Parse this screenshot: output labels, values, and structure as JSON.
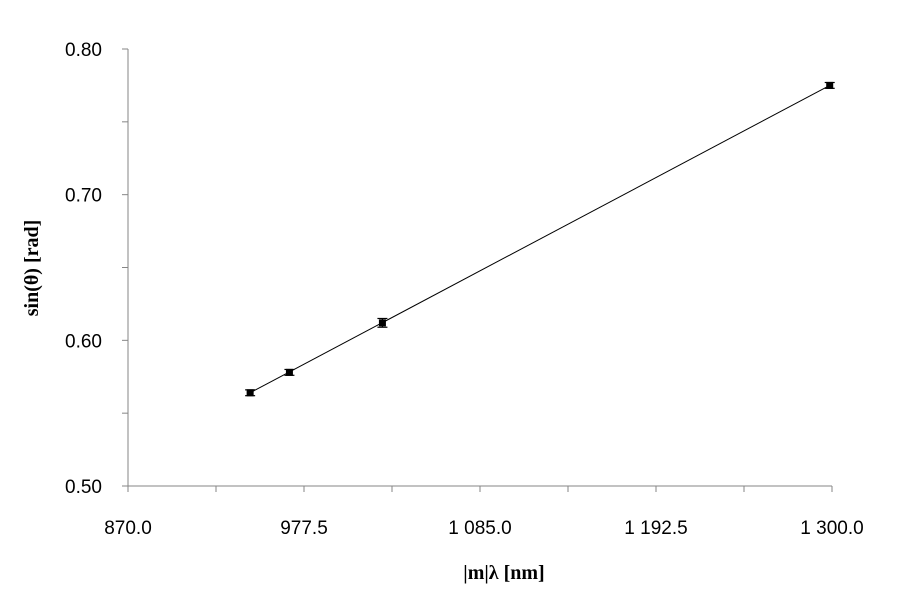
{
  "chart_data": {
    "type": "scatter",
    "title": "",
    "xlabel": "|m|λ [nm]",
    "ylabel": "sin(θ) [rad]",
    "xlim": [
      870.0,
      1300.0
    ],
    "ylim": [
      0.5,
      0.8
    ],
    "x_ticks": [
      870.0,
      977.5,
      1085.0,
      1192.5,
      1300.0
    ],
    "x_tick_labels": [
      "870.0",
      "977.5",
      "1 085.0",
      "1 192.5",
      "1 300.0"
    ],
    "x_minor_step": 53.75,
    "y_ticks": [
      0.5,
      0.6,
      0.7,
      0.8
    ],
    "y_tick_labels": [
      "0.50",
      "0.60",
      "0.70",
      "0.80"
    ],
    "y_minor_step": 0.05,
    "grid": false,
    "legend": "none",
    "series": [
      {
        "x": [
          944.6,
          968.6,
          1025.4,
          1298.6
        ],
        "y": [
          0.564,
          0.578,
          0.612,
          0.775
        ],
        "y_error": [
          0.002,
          0.002,
          0.003,
          0.002
        ],
        "marker": "square",
        "color": "#000000"
      }
    ],
    "trendline": {
      "type": "linear",
      "x": [
        944.6,
        1298.6
      ],
      "y": [
        0.564,
        0.775
      ],
      "color": "#000000"
    }
  }
}
